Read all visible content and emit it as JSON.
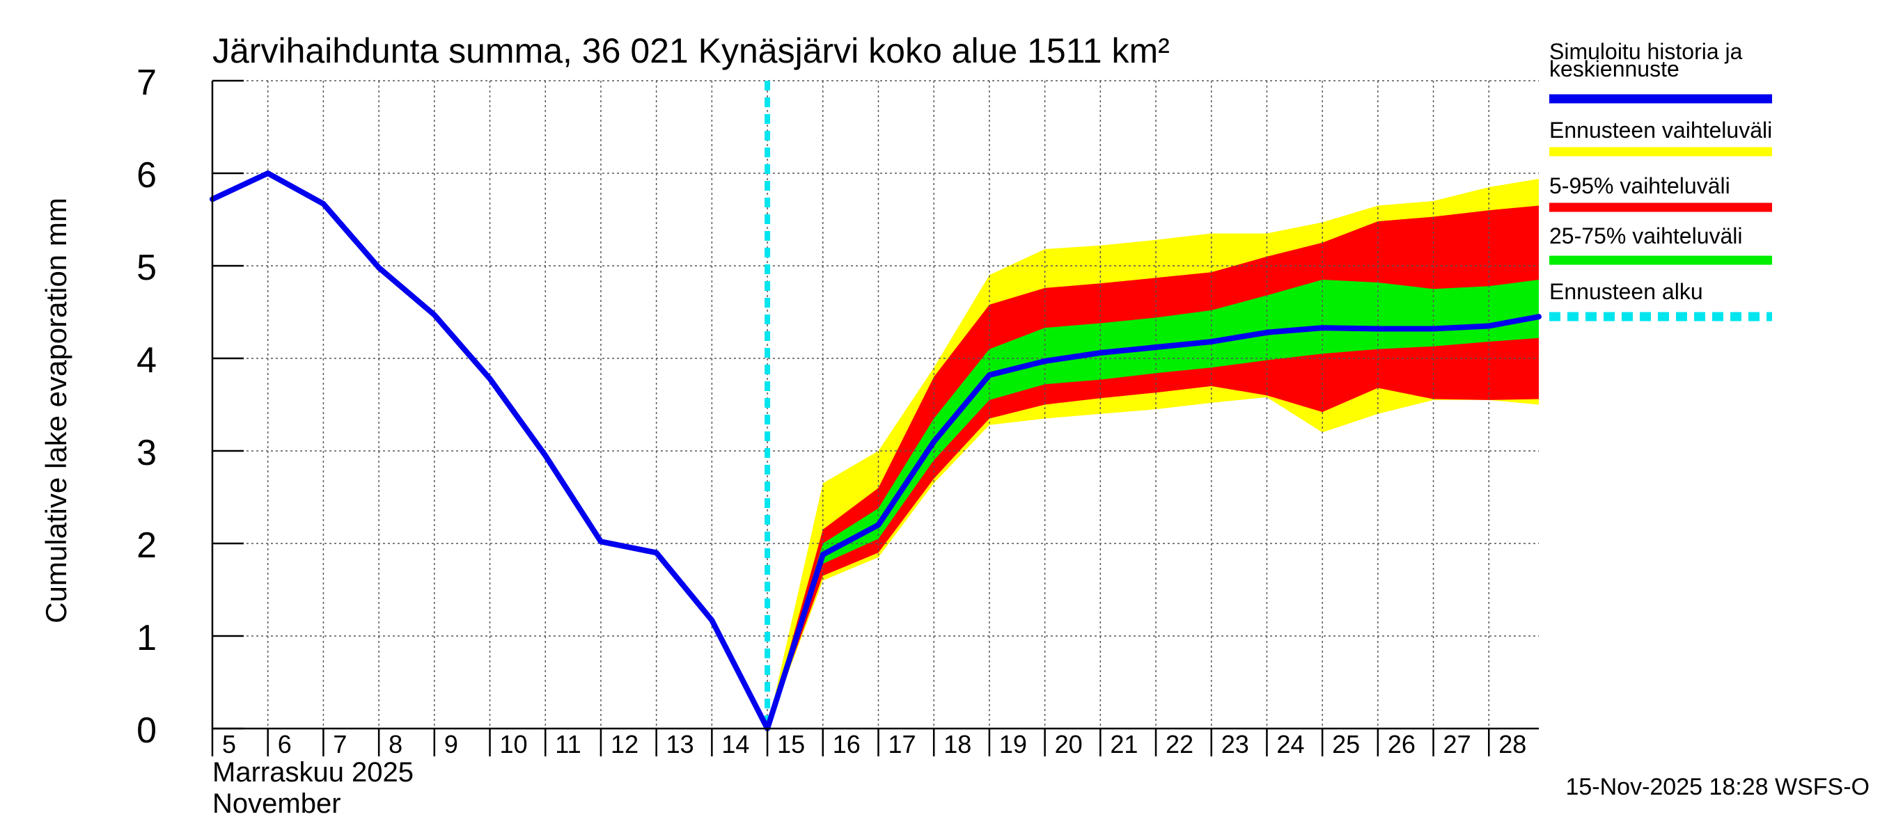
{
  "chart_data": {
    "type": "line",
    "title": "Järvihaihdunta summa, 36 021 Kynäsjärvi koko alue 1511 km²",
    "ylabel": "Cumulative lake evaporation   mm",
    "xlabel_fi": "Marraskuu 2025",
    "xlabel_en": "November",
    "timestamp": "15-Nov-2025 18:28 WSFS-O",
    "ylim": [
      0,
      7
    ],
    "xlim": [
      5,
      28.9
    ],
    "yticks": [
      0,
      1,
      2,
      3,
      4,
      5,
      6,
      7
    ],
    "xticks": [
      5,
      6,
      7,
      8,
      9,
      10,
      11,
      12,
      13,
      14,
      15,
      16,
      17,
      18,
      19,
      20,
      21,
      22,
      23,
      24,
      25,
      26,
      27,
      28
    ],
    "grid": true,
    "legend_position": "right",
    "forecast_start": 15,
    "colors": {
      "main": "#0000ee",
      "range": "#ffff00",
      "p5_95": "#ff0000",
      "p25_75": "#00ee00",
      "forecast_start": "#00e5ee"
    },
    "legend": [
      {
        "label": "Simuloitu historia ja keskiennuste",
        "color": "#0000ee",
        "style": "solid"
      },
      {
        "label": "Ennusteen vaihteluväli",
        "color": "#ffff00",
        "style": "solid"
      },
      {
        "label": "5-95% vaihteluväli",
        "color": "#ff0000",
        "style": "solid"
      },
      {
        "label": "25-75% vaihteluväli",
        "color": "#00ee00",
        "style": "solid"
      },
      {
        "label": "Ennusteen alku",
        "color": "#00e5ee",
        "style": "dashed"
      }
    ],
    "series": [
      {
        "name": "Simuloitu historia ja keskiennuste",
        "x": [
          5,
          6,
          7,
          8,
          9,
          10,
          11,
          12,
          13,
          14,
          15,
          16,
          17,
          18,
          19,
          20,
          21,
          22,
          23,
          24,
          25,
          26,
          27,
          28,
          28.9
        ],
        "y": [
          5.72,
          6.0,
          5.67,
          4.98,
          4.47,
          3.78,
          2.95,
          2.02,
          1.9,
          1.17,
          0.0,
          1.88,
          2.2,
          3.1,
          3.82,
          3.97,
          4.06,
          4.12,
          4.18,
          4.28,
          4.33,
          4.32,
          4.32,
          4.35,
          4.45
        ]
      }
    ],
    "bands": [
      {
        "name": "Ennusteen vaihteluväli",
        "x": [
          15,
          16,
          17,
          18,
          19,
          20,
          21,
          22,
          23,
          24,
          25,
          26,
          27,
          28,
          28.9
        ],
        "upper": [
          0.0,
          2.65,
          3.0,
          3.9,
          4.9,
          5.18,
          5.22,
          5.28,
          5.35,
          5.35,
          5.47,
          5.65,
          5.7,
          5.85,
          5.94
        ],
        "lower": [
          0.0,
          1.6,
          1.85,
          2.65,
          3.28,
          3.35,
          3.4,
          3.45,
          3.52,
          3.58,
          3.2,
          3.4,
          3.55,
          3.55,
          3.5
        ]
      },
      {
        "name": "5-95% vaihteluväli",
        "x": [
          15,
          16,
          17,
          18,
          19,
          20,
          21,
          22,
          23,
          24,
          25,
          26,
          27,
          28,
          28.9
        ],
        "upper": [
          0.0,
          2.15,
          2.6,
          3.8,
          4.58,
          4.76,
          4.81,
          4.87,
          4.93,
          5.1,
          5.25,
          5.48,
          5.53,
          5.6,
          5.65
        ],
        "lower": [
          0.0,
          1.65,
          1.9,
          2.7,
          3.35,
          3.5,
          3.57,
          3.63,
          3.7,
          3.6,
          3.42,
          3.68,
          3.56,
          3.55,
          3.56
        ]
      },
      {
        "name": "25-75% vaihteluväli",
        "x": [
          15,
          16,
          17,
          18,
          19,
          20,
          21,
          22,
          23,
          24,
          25,
          26,
          27,
          28,
          28.9
        ],
        "upper": [
          0.0,
          2.0,
          2.38,
          3.35,
          4.1,
          4.33,
          4.38,
          4.44,
          4.52,
          4.68,
          4.85,
          4.82,
          4.75,
          4.78,
          4.85
        ],
        "lower": [
          0.0,
          1.78,
          2.05,
          2.9,
          3.55,
          3.72,
          3.77,
          3.84,
          3.9,
          3.98,
          4.05,
          4.1,
          4.13,
          4.18,
          4.22
        ]
      }
    ]
  }
}
